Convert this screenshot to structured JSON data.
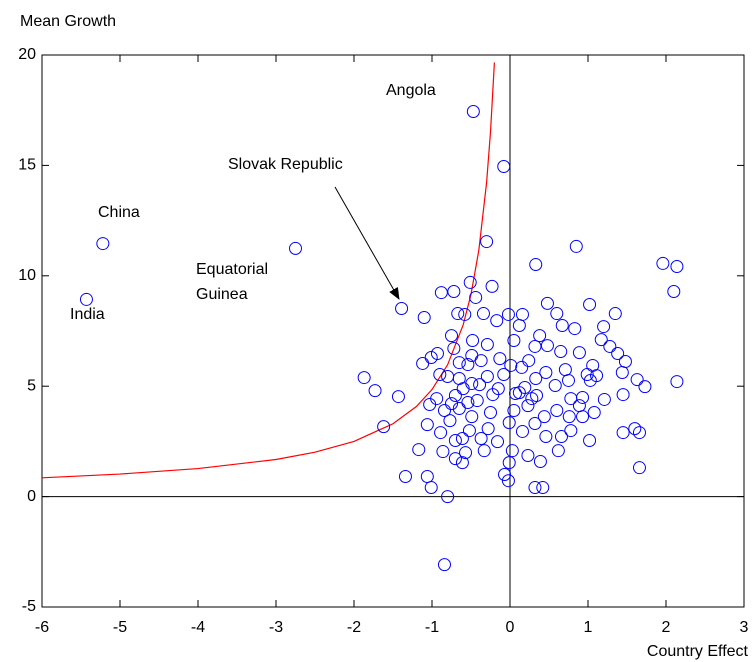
{
  "chart_data": {
    "type": "scatter",
    "xlabel": "Country Effect",
    "ylabel": "Mean Growth",
    "annotations": [
      "Angola",
      "Slovak Republic",
      "China",
      "Equatorial\nGuinea",
      "India"
    ],
    "color": "#0000ff",
    "x": [
      -5.22,
      -5.43,
      -2.75,
      -1.39,
      -0.47,
      -0.08,
      -0.84,
      -0.3,
      0.33,
      0.85,
      1.96,
      2.14,
      2.1,
      0.16,
      0.48,
      -0.88,
      -0.72,
      -0.58,
      -0.23,
      -0.51,
      -1.1,
      -0.93,
      -1.01,
      -1.12,
      -0.75,
      -0.67,
      -0.44,
      -0.34,
      -0.02,
      0.12,
      0.6,
      0.67,
      1.02,
      1.2,
      1.35,
      1.38,
      1.17,
      0.83,
      0.89,
      0.38,
      0.32,
      0.65,
      1.11,
      0.75,
      0.46,
      1.48,
      0.24,
      0.01,
      -0.29,
      -0.48,
      -0.72,
      -0.65,
      -0.8,
      -0.65,
      -0.6,
      -0.54,
      -0.29,
      -0.08,
      -0.13,
      0.15,
      0.19,
      0.34,
      0.58,
      0.78,
      0.93,
      1.03,
      1.21,
      1.45,
      1.63,
      2.14,
      1.73,
      1.45,
      1.6,
      1.66,
      1.66,
      0.78,
      0.66,
      0.62,
      0.46,
      0.39,
      0.32,
      0.23,
      0.05,
      -0.01,
      -0.01,
      -0.07,
      -0.02,
      0.16,
      0.23,
      0.32,
      0.42,
      0.03,
      -0.16,
      -0.28,
      -0.25,
      -0.22,
      -0.42,
      -0.49,
      -0.52,
      -0.61,
      -0.57,
      -0.61,
      -0.7,
      -0.7,
      -0.77,
      -0.84,
      -0.7,
      -0.49,
      -0.65,
      -0.94,
      -0.9,
      -1.03,
      -1.06,
      -1.17,
      -0.89,
      -0.86,
      -1.06,
      -1.34,
      -1.01,
      -0.8,
      -0.75,
      -0.39,
      -0.15,
      0.07,
      0.44,
      0.76,
      0.6,
      0.89,
      1.08,
      1.02,
      0.93,
      -0.33,
      -0.37,
      -1.87,
      -1.73,
      -1.62,
      -1.43,
      -0.54,
      0.12,
      0.28,
      0.05,
      -0.17,
      0.48,
      1.28,
      1.06,
      0.71,
      0.33,
      0.99,
      1.44,
      -0.37,
      -0.49
    ],
    "y": [
      11.46,
      8.93,
      11.24,
      8.52,
      17.44,
      14.95,
      -3.08,
      11.55,
      10.51,
      11.33,
      10.56,
      10.42,
      9.29,
      8.25,
      8.75,
      9.24,
      9.29,
      8.25,
      9.52,
      9.7,
      8.11,
      6.48,
      6.3,
      6.03,
      7.29,
      8.29,
      9.02,
      8.29,
      8.25,
      7.75,
      8.29,
      7.75,
      8.7,
      7.7,
      8.29,
      6.48,
      7.11,
      7.61,
      6.52,
      7.29,
      6.8,
      6.57,
      5.48,
      5.26,
      5.62,
      6.12,
      6.16,
      5.94,
      6.89,
      7.07,
      6.71,
      6.07,
      5.44,
      5.35,
      4.89,
      5.98,
      5.44,
      5.53,
      6.25,
      5.85,
      4.94,
      4.58,
      5.03,
      4.44,
      4.49,
      5.26,
      4.4,
      4.62,
      5.3,
      5.21,
      4.98,
      2.9,
      3.08,
      2.9,
      1.31,
      2.99,
      2.72,
      2.08,
      2.72,
      1.59,
      3.31,
      4.12,
      3.9,
      3.35,
      1.54,
      1.0,
      0.72,
      2.95,
      1.86,
      0.41,
      0.41,
      2.08,
      2.49,
      3.08,
      3.81,
      4.62,
      4.35,
      3.62,
      2.99,
      2.63,
      1.99,
      1.54,
      2.54,
      1.72,
      3.44,
      3.9,
      4.58,
      5.12,
      3.99,
      4.44,
      5.53,
      4.17,
      3.26,
      2.13,
      2.9,
      2.04,
      0.91,
      0.91,
      0.41,
      0.0,
      4.21,
      5.07,
      4.89,
      4.67,
      3.62,
      3.62,
      3.9,
      4.12,
      3.81,
      2.54,
      3.62,
      2.08,
      2.63,
      5.39,
      4.8,
      3.17,
      4.53,
      4.26,
      4.71,
      4.44,
      7.07,
      7.97,
      6.84,
      6.8,
      5.94,
      5.75,
      5.35,
      5.53,
      5.62,
      6.16,
      6.39
    ],
    "curve": {
      "color": "#ff0000",
      "x": [
        -6,
        -5,
        -4,
        -3,
        -2.5,
        -2,
        -1.5,
        -1.2,
        -1,
        -0.8,
        -0.6,
        -0.5,
        -0.4,
        -0.3,
        -0.25,
        -0.2
      ],
      "y": [
        0.85,
        1.02,
        1.27,
        1.68,
        2.01,
        2.5,
        3.3,
        4.08,
        4.85,
        5.97,
        7.78,
        9.16,
        11.15,
        14.23,
        16.51,
        19.66
      ]
    },
    "xlim": [
      -6,
      3
    ],
    "xticks": [
      -6,
      -5,
      -4,
      -3,
      -2,
      -1,
      0,
      1,
      2,
      3
    ],
    "ylim": [
      -5,
      20
    ],
    "yticks": [
      -5,
      0,
      5,
      10,
      15,
      20
    ],
    "zero_lines": true,
    "grid": false
  }
}
